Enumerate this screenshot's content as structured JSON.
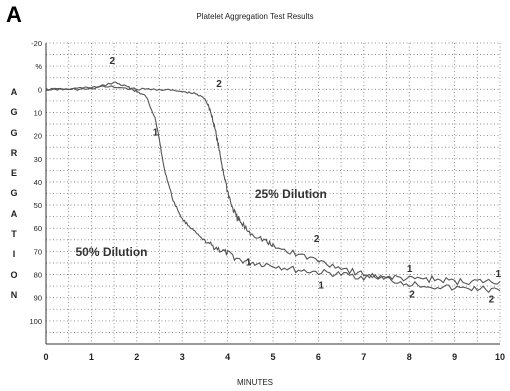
{
  "panel_label": "A",
  "chart_data": {
    "type": "line",
    "title": "Platelet Aggregation Test Results",
    "xlabel": "MINUTES",
    "ylabel_unit": "%",
    "ylabel_letters": [
      "A",
      "G",
      "G",
      "R",
      "E",
      "G",
      "A",
      "T",
      "I",
      "O",
      "N"
    ],
    "xlim": [
      0,
      10
    ],
    "ylim": [
      -20,
      110
    ],
    "y_inverted": true,
    "grid": true,
    "x_ticks": [
      0,
      1,
      2,
      3,
      4,
      5,
      6,
      7,
      8,
      9,
      10
    ],
    "y_ticks": [
      -20,
      -10,
      0,
      10,
      20,
      30,
      40,
      50,
      60,
      70,
      80,
      90,
      100
    ],
    "y_tick_labels": [
      "-20",
      "%",
      "0",
      "10",
      "20",
      "30",
      "40",
      "50",
      "60",
      "70",
      "80",
      "90",
      "100"
    ],
    "series": [
      {
        "id": "1",
        "x": [
          0,
          0.5,
          1,
          1.5,
          1.8,
          2.0,
          2.2,
          2.4,
          2.5,
          2.6,
          2.8,
          3.0,
          3.2,
          3.4,
          3.6,
          3.8,
          4.0,
          4.3,
          4.6,
          5.0,
          5.5,
          6.0,
          6.5,
          7.0,
          7.5,
          8.0,
          8.5,
          9.0,
          9.5,
          10
        ],
        "y": [
          0,
          0,
          0,
          -3,
          -1,
          1,
          3,
          12,
          22,
          34,
          48,
          56,
          60,
          64,
          67,
          69,
          71,
          74,
          75,
          76,
          78,
          79,
          80,
          81,
          81,
          82,
          82,
          83,
          83,
          83
        ]
      },
      {
        "id": "2",
        "x": [
          0,
          0.5,
          1,
          1.5,
          2.0,
          2.5,
          3.0,
          3.3,
          3.5,
          3.6,
          3.7,
          3.8,
          3.9,
          4.0,
          4.1,
          4.2,
          4.3,
          4.5,
          4.8,
          5.0,
          5.5,
          6.0,
          6.5,
          7.0,
          7.5,
          8.0,
          8.5,
          9.0,
          9.5,
          10
        ],
        "y": [
          0,
          0,
          -1,
          -1,
          0,
          0,
          1,
          2,
          4,
          8,
          15,
          25,
          35,
          44,
          51,
          55,
          58,
          62,
          65,
          68,
          71,
          74,
          77,
          80,
          82,
          84,
          85,
          86,
          86,
          87
        ]
      }
    ],
    "annotations": [
      {
        "text": "2",
        "x": 1.4,
        "y": -11
      },
      {
        "text": "2",
        "x": 3.75,
        "y": -1
      },
      {
        "text": "1",
        "x": 2.35,
        "y": 20
      },
      {
        "text": "25% Dilution",
        "x": 4.6,
        "y": 47
      },
      {
        "text": "50% Dilution",
        "x": 0.65,
        "y": 72
      },
      {
        "text": "2",
        "x": 5.9,
        "y": 66
      },
      {
        "text": "1",
        "x": 4.4,
        "y": 76
      },
      {
        "text": "1",
        "x": 7.95,
        "y": 79
      },
      {
        "text": "1",
        "x": 6.0,
        "y": 86
      },
      {
        "text": "2",
        "x": 8.0,
        "y": 90
      },
      {
        "text": "1",
        "x": 9.9,
        "y": 81
      },
      {
        "text": "2",
        "x": 9.75,
        "y": 92
      }
    ]
  }
}
